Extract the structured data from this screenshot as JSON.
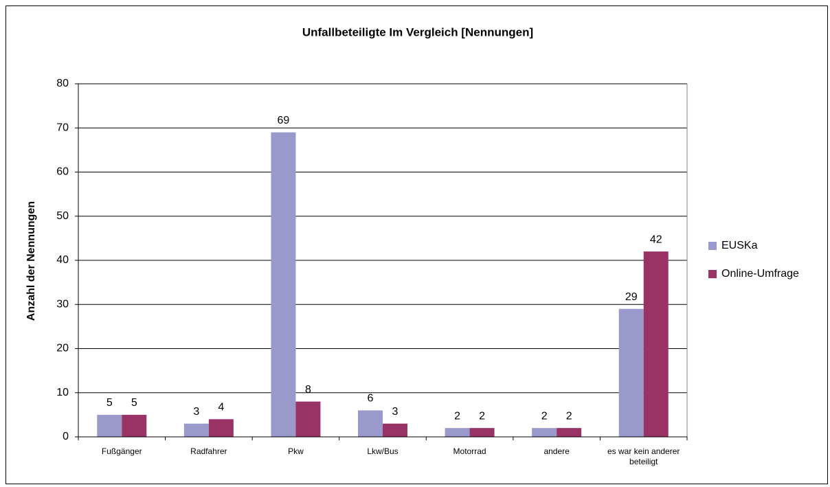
{
  "chart_data": {
    "type": "bar",
    "title": "Unfallbeteiligte Im Vergleich [Nennungen]",
    "y_label": "Anzahl der Nennungen",
    "categories": [
      "Fußgänger",
      "Radfahrer",
      "Pkw",
      "Lkw/Bus",
      "Motorrad",
      "andere",
      "es war kein anderer beteiligt"
    ],
    "series": [
      {
        "name": "EUSKa",
        "color": "#9999cc",
        "values": [
          5,
          3,
          69,
          6,
          2,
          2,
          29
        ]
      },
      {
        "name": "Online-Umfrage",
        "color": "#993366",
        "values": [
          5,
          4,
          8,
          3,
          2,
          2,
          42
        ]
      }
    ],
    "ylim": [
      0,
      80
    ],
    "yticks": [
      0,
      10,
      20,
      30,
      40,
      50,
      60,
      70,
      80
    ],
    "grid": true,
    "legend": "right"
  }
}
